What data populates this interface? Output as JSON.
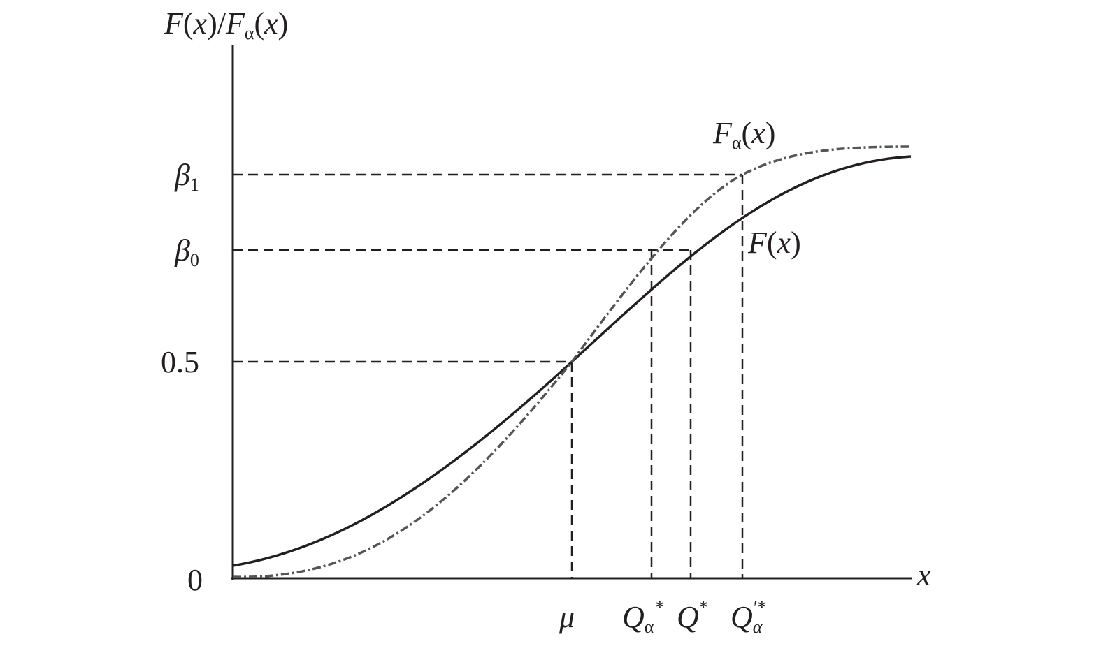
{
  "y_axis_label": [
    "F",
    "(",
    "x",
    ")/",
    "F",
    "α",
    "(",
    "x",
    ")"
  ],
  "x_axis_label": "x",
  "y_labels": {
    "beta1": [
      "β",
      "1"
    ],
    "beta0": [
      "β",
      "0"
    ],
    "half": "0.5",
    "zero": "0"
  },
  "x_labels": {
    "mu": "μ",
    "q_alpha": [
      "Q",
      "α",
      "*"
    ],
    "q": [
      "Q",
      "*"
    ],
    "q_alpha_prime": [
      "Q",
      "α",
      "′*"
    ]
  },
  "curve_labels": {
    "f_alpha": [
      "F",
      "α",
      "(",
      "x",
      ")"
    ],
    "f": [
      "F",
      "(",
      "x",
      ")"
    ]
  }
}
